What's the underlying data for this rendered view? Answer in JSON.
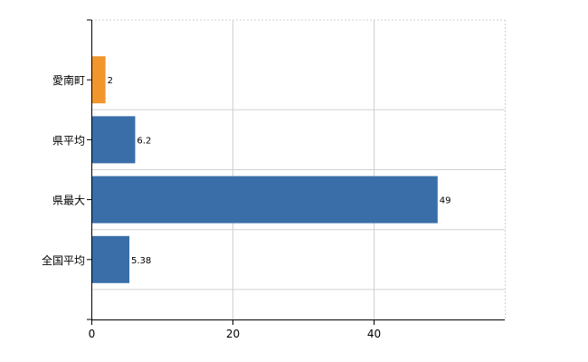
{
  "chart_data": {
    "type": "bar",
    "orientation": "horizontal",
    "categories": [
      "愛南町",
      "県平均",
      "県最大",
      "全国平均"
    ],
    "values": [
      2,
      6.2,
      49,
      5.38
    ],
    "value_labels": [
      "2",
      "6.2",
      "49",
      "5.38"
    ],
    "bar_colors": [
      "#f0962d",
      "#3a6ea8",
      "#3a6ea8",
      "#3a6ea8"
    ],
    "title": "",
    "xlabel": "",
    "ylabel": "",
    "xlim": [
      0,
      58.5
    ],
    "xticks": [
      0,
      20,
      40
    ],
    "xtick_labels": [
      "0",
      "20",
      "40"
    ],
    "grid": true,
    "legend": "none"
  },
  "colors": {
    "highlight": "#f0962d",
    "bar": "#3a6ea8",
    "grid": "#d0d0d0",
    "axis": "#000000"
  }
}
